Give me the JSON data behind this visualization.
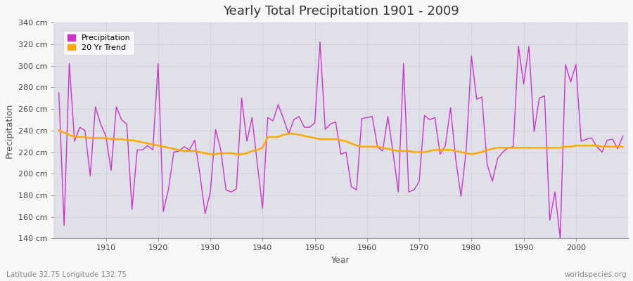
{
  "title": "Yearly Total Precipitation 1901 - 2009",
  "xlabel": "Year",
  "ylabel": "Precipitation",
  "lat_lon_label": "Latitude 32.75 Longitude 132.75",
  "source_label": "worldspecies.org",
  "fig_bg_color": "#f8f8f8",
  "plot_bg_color": "#e0e0e8",
  "grid_color": "#c8c8d8",
  "precip_color": "#cc33cc",
  "trend_color": "#ffaa00",
  "ylim": [
    140,
    340
  ],
  "ytick_step": 20,
  "years": [
    1901,
    1902,
    1903,
    1904,
    1905,
    1906,
    1907,
    1908,
    1909,
    1910,
    1911,
    1912,
    1913,
    1914,
    1915,
    1916,
    1917,
    1918,
    1919,
    1920,
    1921,
    1922,
    1923,
    1924,
    1925,
    1926,
    1927,
    1928,
    1929,
    1930,
    1931,
    1932,
    1933,
    1934,
    1935,
    1936,
    1937,
    1938,
    1939,
    1940,
    1941,
    1942,
    1943,
    1944,
    1945,
    1946,
    1947,
    1948,
    1949,
    1950,
    1951,
    1952,
    1953,
    1954,
    1955,
    1956,
    1957,
    1958,
    1959,
    1960,
    1961,
    1962,
    1963,
    1964,
    1965,
    1966,
    1967,
    1968,
    1969,
    1970,
    1971,
    1972,
    1973,
    1974,
    1975,
    1976,
    1977,
    1978,
    1979,
    1980,
    1981,
    1982,
    1983,
    1984,
    1985,
    1986,
    1987,
    1988,
    1989,
    1990,
    1991,
    1992,
    1993,
    1994,
    1995,
    1996,
    1997,
    1998,
    1999,
    2000,
    2001,
    2002,
    2003,
    2004,
    2005,
    2006,
    2007,
    2008,
    2009
  ],
  "precip": [
    275,
    152,
    302,
    230,
    243,
    240,
    198,
    262,
    246,
    235,
    203,
    262,
    250,
    246,
    167,
    222,
    222,
    226,
    222,
    302,
    165,
    186,
    220,
    221,
    225,
    222,
    231,
    200,
    163,
    183,
    241,
    222,
    185,
    183,
    186,
    270,
    230,
    252,
    209,
    168,
    252,
    249,
    264,
    251,
    237,
    250,
    253,
    243,
    243,
    247,
    322,
    241,
    246,
    248,
    218,
    220,
    188,
    185,
    251,
    252,
    253,
    225,
    221,
    253,
    219,
    183,
    302,
    183,
    185,
    193,
    254,
    250,
    252,
    218,
    226,
    261,
    213,
    179,
    222,
    309,
    269,
    271,
    209,
    193,
    214,
    220,
    224,
    225,
    318,
    283,
    318,
    239,
    270,
    272,
    157,
    183,
    140,
    301,
    285,
    301,
    230,
    232,
    233,
    225,
    220,
    231,
    232,
    223,
    235
  ],
  "trend": [
    240,
    238,
    236,
    234,
    234,
    234,
    233,
    233,
    233,
    233,
    232,
    232,
    232,
    231,
    231,
    230,
    229,
    228,
    227,
    226,
    225,
    224,
    223,
    222,
    221,
    221,
    221,
    220,
    219,
    218,
    218,
    219,
    219,
    219,
    218,
    218,
    219,
    221,
    222,
    224,
    234,
    234,
    234,
    236,
    237,
    237,
    236,
    235,
    234,
    233,
    232,
    232,
    232,
    232,
    231,
    230,
    228,
    226,
    225,
    225,
    225,
    225,
    224,
    223,
    222,
    221,
    221,
    221,
    220,
    220,
    220,
    221,
    222,
    222,
    222,
    222,
    221,
    220,
    219,
    218,
    219,
    220,
    222,
    223,
    224,
    224,
    224,
    224,
    224,
    224,
    224,
    224,
    224,
    224,
    224,
    224,
    224,
    225,
    225,
    226,
    226,
    226,
    226,
    226,
    225,
    225,
    225,
    225,
    225
  ]
}
